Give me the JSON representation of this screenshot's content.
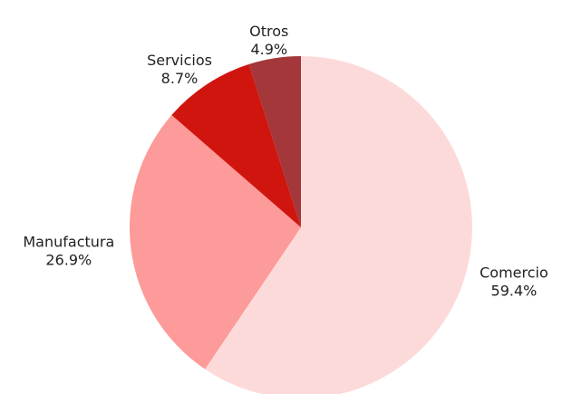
{
  "chart_data": {
    "type": "pie",
    "categories": [
      "Comercio",
      "Manufactura",
      "Servicios",
      "Otros"
    ],
    "values": [
      59.4,
      26.9,
      8.7,
      4.9
    ],
    "value_labels": [
      "59.4%",
      "26.9%",
      "8.7%",
      "4.9%"
    ],
    "colors": [
      "#fddada",
      "#fd9a9a",
      "#d0150f",
      "#a3373a"
    ]
  }
}
